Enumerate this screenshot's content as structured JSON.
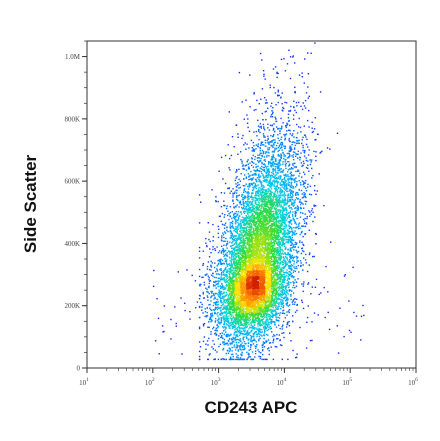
{
  "chart_data": {
    "type": "scatter",
    "subtype": "flow-cytometry-density-dot-plot",
    "xlabel": "CD243 APC",
    "ylabel": "Side Scatter",
    "x_scale": "log",
    "xlim": [
      10,
      1000000
    ],
    "ylim": [
      0,
      1050000
    ],
    "x_ticks": [
      {
        "value": 10,
        "base": "10",
        "exp": "1"
      },
      {
        "value": 100,
        "base": "10",
        "exp": "2"
      },
      {
        "value": 1000,
        "base": "10",
        "exp": "3"
      },
      {
        "value": 10000,
        "base": "10",
        "exp": "4"
      },
      {
        "value": 100000,
        "base": "10",
        "exp": "5"
      },
      {
        "value": 1000000,
        "base": "10",
        "exp": "6"
      }
    ],
    "y_ticks": [
      {
        "value": 0,
        "label": "0"
      },
      {
        "value": 200000,
        "label": "200K"
      },
      {
        "value": 400000,
        "label": "400K"
      },
      {
        "value": 600000,
        "label": "600K"
      },
      {
        "value": 800000,
        "label": "800K"
      },
      {
        "value": 1000000,
        "label": "1.0M"
      }
    ],
    "population": {
      "center_x": 3500,
      "center_y": 300000,
      "x_range": [
        1000,
        100000
      ],
      "y_range": [
        30000,
        1050000
      ],
      "description_colors": "density colormap blue-cyan-green-yellow-red (low to high)"
    },
    "grid": false,
    "legend": "none",
    "colors": {
      "low_density": "#1a1aff",
      "mid_low": "#00c8ff",
      "mid": "#33dd33",
      "mid_high": "#ffee00",
      "high_density": "#dd2200"
    }
  }
}
